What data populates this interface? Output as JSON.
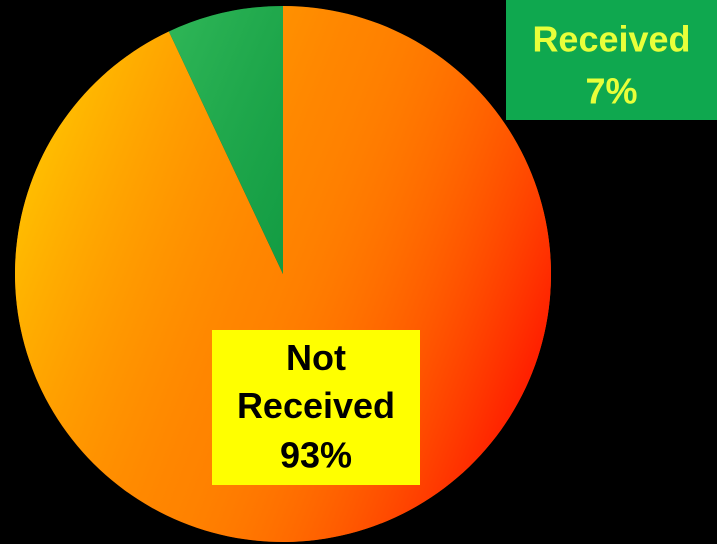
{
  "chart_data": {
    "type": "pie",
    "categories": [
      "Not Received",
      "Received"
    ],
    "values": [
      93,
      7
    ],
    "value_labels": [
      "93%",
      "7%"
    ],
    "colors": [
      "#ff7a00",
      "#1fae4f"
    ]
  }
}
